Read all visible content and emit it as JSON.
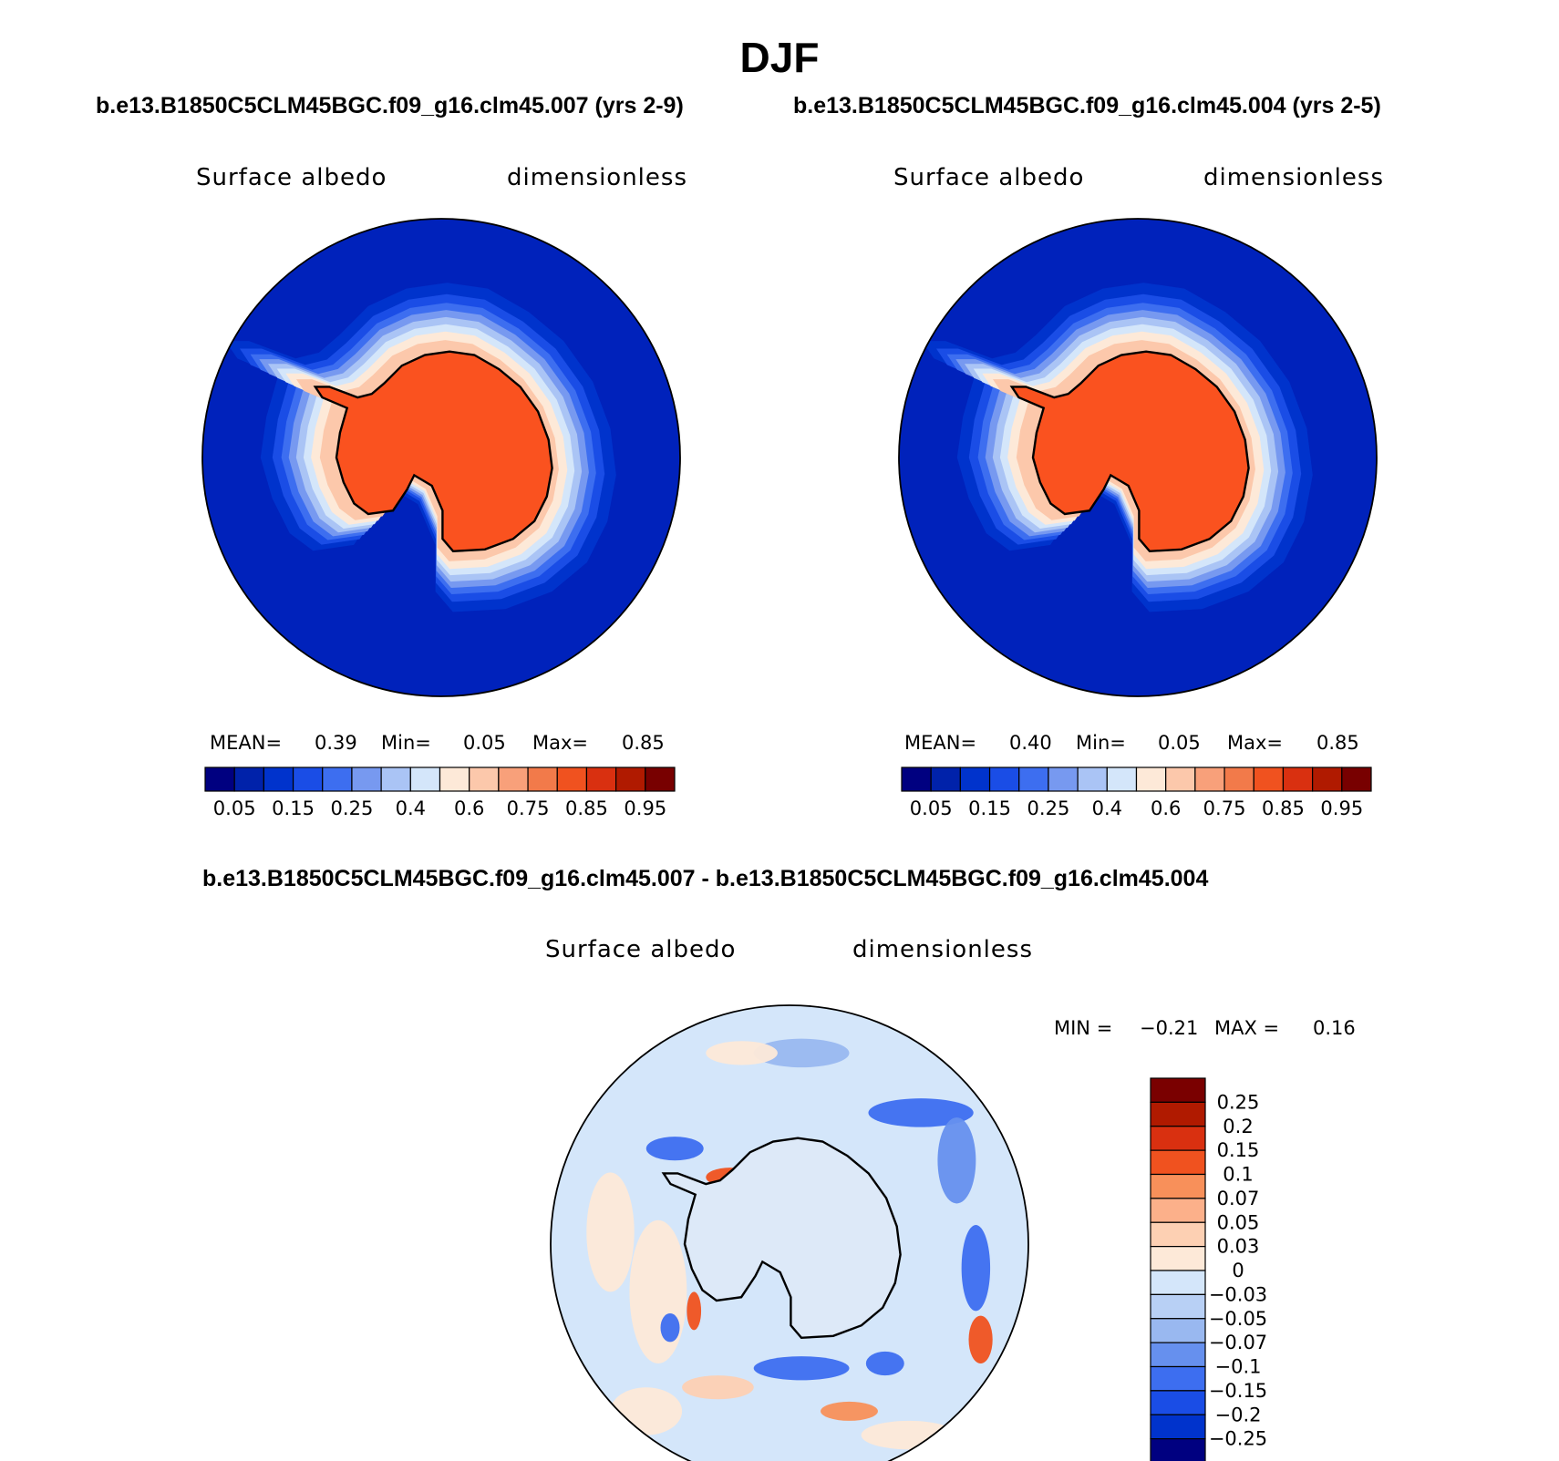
{
  "title": "DJF",
  "panels": [
    {
      "id": "top-left",
      "case_title": "b.e13.B1850C5CLM45BGC.f09_g16.clm45.007 (yrs 2-9)",
      "variable": "Surface albedo",
      "units": "dimensionless",
      "stats": {
        "mean_label": "MEAN=",
        "mean": "0.39",
        "min_label": "Min=",
        "min": "0.05",
        "max_label": "Max=",
        "max": "0.85"
      }
    },
    {
      "id": "top-right",
      "case_title": "b.e13.B1850C5CLM45BGC.f09_g16.clm45.004 (yrs 2-5)",
      "variable": "Surface albedo",
      "units": "dimensionless",
      "stats": {
        "mean_label": "MEAN=",
        "mean": "0.40",
        "min_label": "Min=",
        "min": "0.05",
        "max_label": "Max=",
        "max": "0.85"
      }
    }
  ],
  "diff_panel": {
    "case_title": "b.e13.B1850C5CLM45BGC.f09_g16.clm45.007 - b.e13.B1850C5CLM45BGC.f09_g16.clm45.004",
    "variable": "Surface albedo",
    "units": "dimensionless",
    "stats": {
      "min_label": "MIN =",
      "min": "−0.21",
      "max_label": "MAX =",
      "max": "0.16"
    }
  },
  "colors": {
    "albedo_scale": [
      "#000080",
      "#0022aa",
      "#0033cc",
      "#1a4de6",
      "#3d6ef0",
      "#7799f0",
      "#aac4f5",
      "#d4e6fa",
      "#fde9d8",
      "#fcc8ab",
      "#f8a07a",
      "#f27a4a",
      "#f0521f",
      "#d93010",
      "#b01a00",
      "#780000"
    ],
    "diff_scale": [
      "#7a0000",
      "#b01a00",
      "#d93010",
      "#f0521f",
      "#f8905a",
      "#fcb08a",
      "#fdd0b3",
      "#fde9d8",
      "#d4e6fa",
      "#b8d0f5",
      "#99b8f0",
      "#6690ee",
      "#3d6ef0",
      "#1a4de6",
      "#0033cc",
      "#000080"
    ],
    "ocean_blue": "#0022bb",
    "ice_orange": "#fa521f",
    "coast": "#000000"
  },
  "chart_data": [
    {
      "type": "heatmap",
      "title": "b.e13.B1850C5CLM45BGC.f09_g16.clm45.007 (yrs 2-9)",
      "projection": "south polar stereographic",
      "variable": "Surface albedo",
      "units": "dimensionless",
      "colorbar_labels": [
        "0.05",
        "0.15",
        "0.25",
        "0.4",
        "0.6",
        "0.75",
        "0.85",
        "0.95"
      ],
      "mean": 0.39,
      "min": 0.05,
      "max": 0.85
    },
    {
      "type": "heatmap",
      "title": "b.e13.B1850C5CLM45BGC.f09_g16.clm45.004 (yrs 2-5)",
      "projection": "south polar stereographic",
      "variable": "Surface albedo",
      "units": "dimensionless",
      "colorbar_labels": [
        "0.05",
        "0.15",
        "0.25",
        "0.4",
        "0.6",
        "0.75",
        "0.85",
        "0.95"
      ],
      "mean": 0.4,
      "min": 0.05,
      "max": 0.85
    },
    {
      "type": "heatmap",
      "title": "b.e13.B1850C5CLM45BGC.f09_g16.clm45.007 - b.e13.B1850C5CLM45BGC.f09_g16.clm45.004",
      "projection": "south polar stereographic",
      "variable": "Surface albedo",
      "units": "dimensionless",
      "colorbar_labels": [
        "0.25",
        "0.2",
        "0.15",
        "0.1",
        "0.07",
        "0.05",
        "0.03",
        "0",
        "−0.03",
        "−0.05",
        "−0.07",
        "−0.1",
        "−0.15",
        "−0.2",
        "−0.25"
      ],
      "min": -0.21,
      "max": 0.16
    }
  ]
}
